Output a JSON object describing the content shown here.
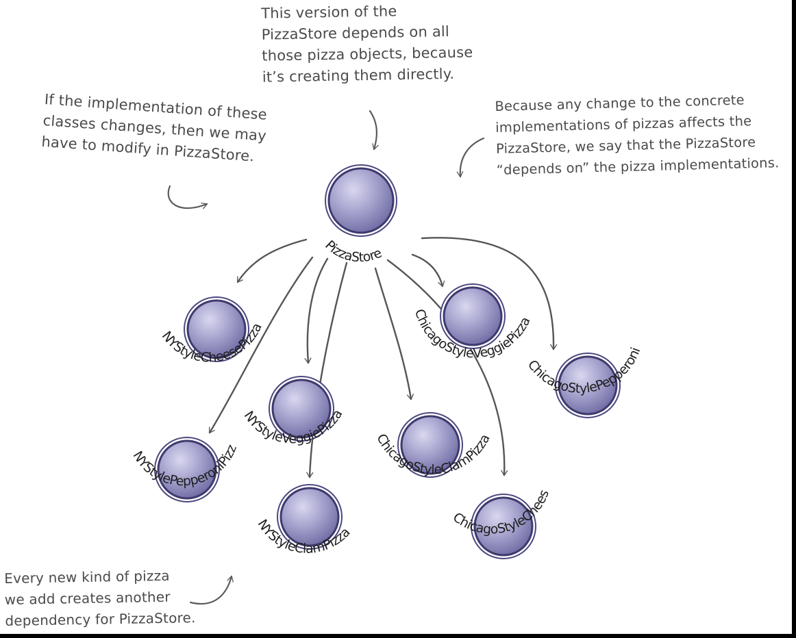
{
  "annotations": {
    "top": [
      "This version of the",
      "PizzaStore depends on all",
      "those pizza objects, because",
      "it’s creating them directly."
    ],
    "left": [
      "If the implementation of these",
      "classes changes, then we may",
      "have to modify in PizzaStore."
    ],
    "right": [
      "Because any change to the concrete",
      "implementations of pizzas affects the",
      "PizzaStore, we say that the PizzaStore",
      "“depends on” the pizza implementations."
    ],
    "bottom": [
      "Every new kind of pizza",
      "we add creates another",
      "dependency for PizzaStore."
    ]
  },
  "nodes": {
    "pizza_store": "PizzaStore",
    "ny_cheese": "NYStyleCheesePizza",
    "ny_veggie": "NYStyleVeggiePizza",
    "ny_pepperoni": "NYStylePepperoniPizza",
    "ny_clam": "NYStyleClamPizza",
    "chicago_veggie": "ChicagoStyleVeggiePizza",
    "chicago_pepperoni": "ChicagoStylePepperoniPizza",
    "chicago_clam": "ChicagoStyleClamPizza",
    "chicago_cheese": "ChicagoStyleCheesePizza"
  },
  "edges": [
    [
      "pizza_store",
      "ny_cheese"
    ],
    [
      "pizza_store",
      "ny_pepperoni"
    ],
    [
      "pizza_store",
      "ny_veggie"
    ],
    [
      "pizza_store",
      "ny_clam"
    ],
    [
      "pizza_store",
      "chicago_clam"
    ],
    [
      "pizza_store",
      "chicago_veggie"
    ],
    [
      "pizza_store",
      "chicago_cheese"
    ],
    [
      "pizza_store",
      "chicago_pepperoni"
    ]
  ],
  "colors": {
    "node_fill": "#9a98c4",
    "node_rim": "#3e3a6e",
    "node_highlight": "#d6d4ee",
    "ink": "#4a4a4a",
    "label": "#1e1e1e"
  }
}
